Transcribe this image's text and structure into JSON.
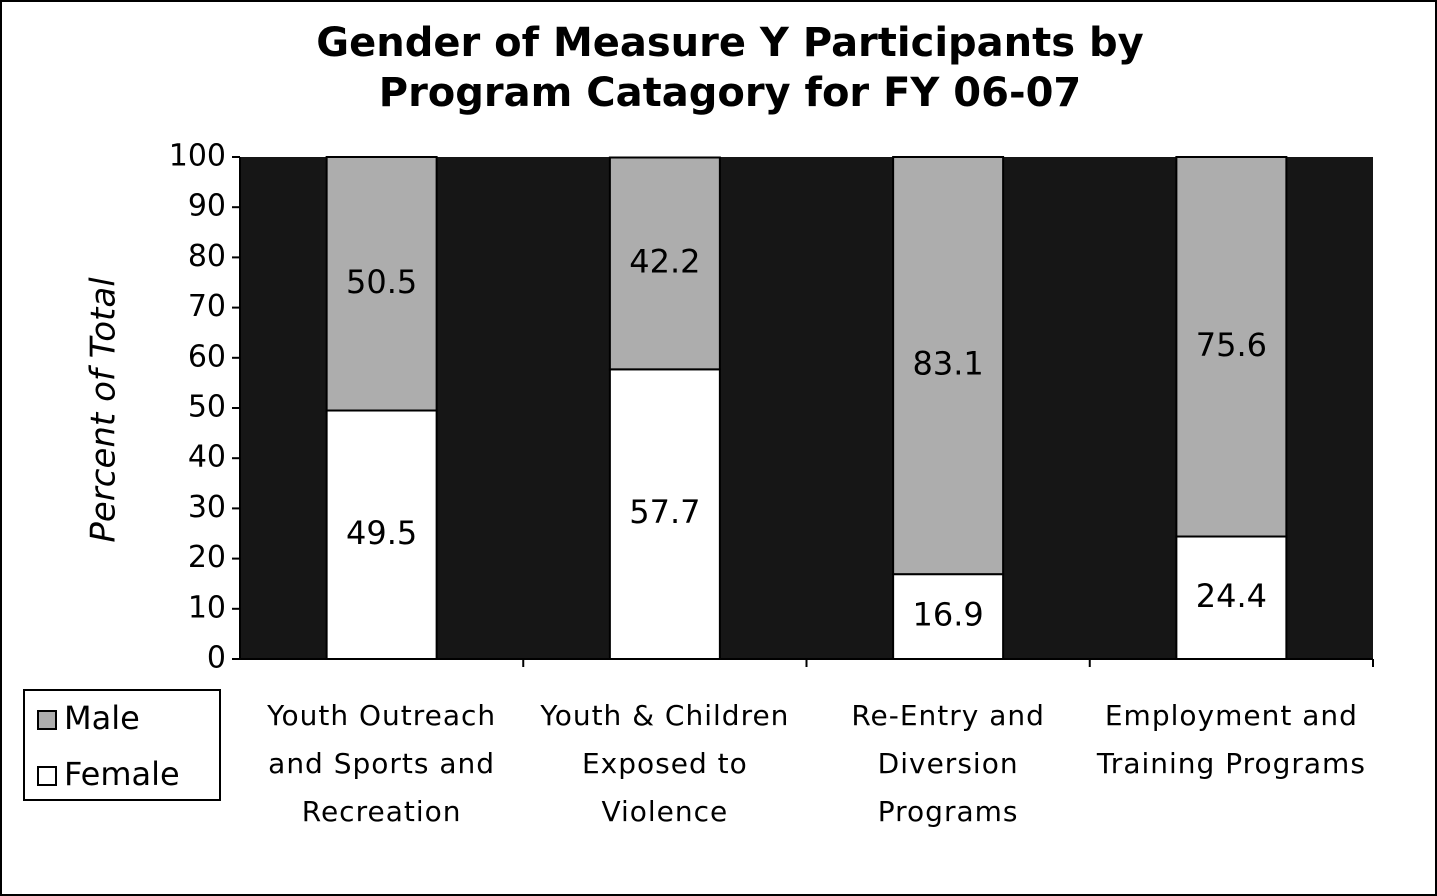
{
  "chart_data": {
    "type": "stacked_bar",
    "title": "Gender of Measure Y Participants by Program Catagory for FY 06-07",
    "y_label": "Percent of Total",
    "categories": [
      "Youth Outreach and Sports and Recreation",
      "Youth & Children Exposed to Violence",
      "Re-Entry and Diversion Programs",
      "Employment and Training Programs"
    ],
    "series": [
      {
        "name": "Female",
        "color": "#ffffff",
        "values": [
          49.5,
          57.7,
          16.9,
          24.4
        ]
      },
      {
        "name": "Male",
        "color": "#adadad",
        "values": [
          50.5,
          42.2,
          83.1,
          75.6
        ]
      }
    ],
    "ylim": [
      0,
      100
    ],
    "yticks": [
      0,
      10,
      20,
      30,
      40,
      50,
      60,
      70,
      80,
      90,
      100
    ],
    "plot_background": "#161616",
    "legend": "bottom-left"
  }
}
